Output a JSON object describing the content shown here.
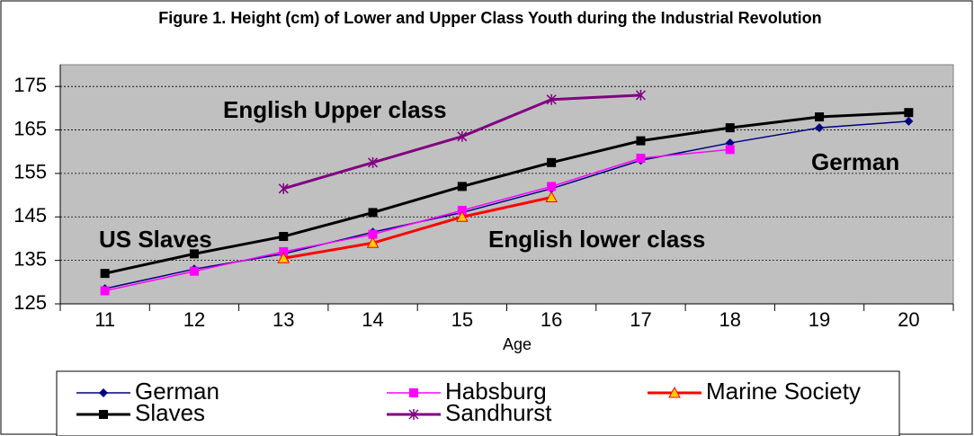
{
  "chart_data": {
    "type": "line",
    "title": "Figure 1. Height (cm) of Lower and Upper Class Youth during the Industrial Revolution",
    "x_label": "Age",
    "categories": [
      "11",
      "12",
      "13",
      "14",
      "15",
      "16",
      "17",
      "18",
      "19",
      "20"
    ],
    "ylim": [
      125,
      180
    ],
    "yticks": [
      125,
      135,
      145,
      155,
      165,
      175
    ],
    "grid": true,
    "annotations": [
      "English Upper class",
      "US Slaves",
      "English lower class",
      "German"
    ],
    "series": [
      {
        "name": "German",
        "color": "#000080",
        "marker": "diamond",
        "values": [
          128.5,
          133,
          136.5,
          141.5,
          146,
          151.5,
          158,
          162,
          165.5,
          167
        ]
      },
      {
        "name": "Habsburg",
        "color": "#ff00ff",
        "marker": "square",
        "values": [
          128,
          132.5,
          137,
          141,
          146.5,
          152,
          158.5,
          160.5,
          null,
          null
        ]
      },
      {
        "name": "Marine Society",
        "color": "#ff0000",
        "marker": "triangle",
        "values": [
          null,
          null,
          135.5,
          139,
          145,
          149.5,
          null,
          null,
          null,
          null
        ]
      },
      {
        "name": "Slaves",
        "color": "#000000",
        "marker": "square",
        "values": [
          132,
          136.5,
          140.5,
          146,
          152,
          157.5,
          162.5,
          165.5,
          168,
          169
        ]
      },
      {
        "name": "Sandhurst",
        "color": "#800080",
        "marker": "asterisk",
        "values": [
          null,
          null,
          151.5,
          157.5,
          163.5,
          172,
          173,
          null,
          null,
          null
        ]
      }
    ]
  }
}
